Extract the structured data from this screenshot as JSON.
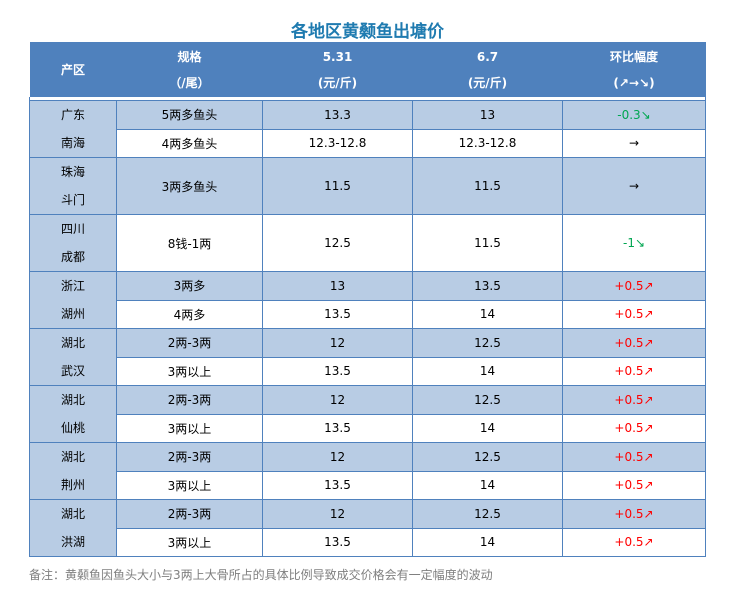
{
  "title": "各地区黄颡鱼出塘价",
  "headers": [
    [
      "产区"
    ],
    [
      "规格",
      "（/尾）"
    ],
    [
      "5.31",
      "(元/斤)"
    ],
    [
      "6.7",
      "(元/斤)"
    ],
    [
      "环比幅度",
      "(↗→↘)"
    ]
  ],
  "groups": [
    {
      "region": [
        "广东",
        "南海"
      ],
      "rows": [
        [
          "5两多鱼头",
          "13.3",
          "13",
          "-0.3↘",
          "down"
        ],
        [
          "4两多鱼头",
          "12.3-12.8",
          "12.3-12.8",
          "→",
          ""
        ]
      ]
    },
    {
      "region": [
        "珠海",
        "斗门"
      ],
      "rows": [
        [
          "3两多鱼头",
          "11.5",
          "11.5",
          "→",
          ""
        ]
      ]
    },
    {
      "region": [
        "四川",
        "成都"
      ],
      "rows": [
        [
          "8钱-1两",
          "12.5",
          "11.5",
          "-1↘",
          "down"
        ]
      ]
    },
    {
      "region": [
        "浙江",
        "湖州"
      ],
      "rows": [
        [
          "3两多",
          "13",
          "13.5",
          "+0.5↗",
          "up"
        ],
        [
          "4两多",
          "13.5",
          "14",
          "+0.5↗",
          "up"
        ]
      ]
    },
    {
      "region": [
        "湖北",
        "武汉"
      ],
      "rows": [
        [
          "2两-3两",
          "12",
          "12.5",
          "+0.5↗",
          "up"
        ],
        [
          "3两以上",
          "13.5",
          "14",
          "+0.5↗",
          "up"
        ]
      ]
    },
    {
      "region": [
        "湖北",
        "仙桃"
      ],
      "rows": [
        [
          "2两-3两",
          "12",
          "12.5",
          "+0.5↗",
          "up"
        ],
        [
          "3两以上",
          "13.5",
          "14",
          "+0.5↗",
          "up"
        ]
      ]
    },
    {
      "region": [
        "湖北",
        "荆州"
      ],
      "rows": [
        [
          "2两-3两",
          "12",
          "12.5",
          "+0.5↗",
          "up"
        ],
        [
          "3两以上",
          "13.5",
          "14",
          "+0.5↗",
          "up"
        ]
      ]
    },
    {
      "region": [
        "湖北",
        "洪湖"
      ],
      "rows": [
        [
          "2两-3两",
          "12",
          "12.5",
          "+0.5↗",
          "up"
        ],
        [
          "3两以上",
          "13.5",
          "14",
          "+0.5↗",
          "up"
        ]
      ]
    }
  ],
  "note": "备注：黄颡鱼因鱼头大小与3两上大骨所占的具体比例导致成交价格会有一定幅度的波动"
}
